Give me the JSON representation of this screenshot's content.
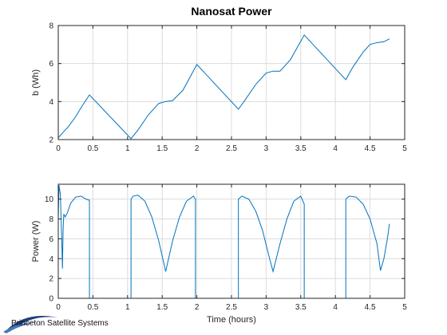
{
  "chart_data": {
    "type": "line",
    "title": "Nanosat Power",
    "color": "#0072BD",
    "charts": [
      {
        "ylabel": "b (Wh)",
        "xlabel": "",
        "xlim": [
          0,
          5
        ],
        "ylim": [
          2,
          8
        ],
        "xticks": [
          0,
          0.5,
          1,
          1.5,
          2,
          2.5,
          3,
          3.5,
          4,
          4.5,
          5
        ],
        "yticks": [
          2,
          4,
          6,
          8
        ],
        "grid": true,
        "x": [
          0,
          0.05,
          0.15,
          0.25,
          0.35,
          0.45,
          1.05,
          1.15,
          1.3,
          1.45,
          1.55,
          1.65,
          1.8,
          2.0,
          2.6,
          2.7,
          2.85,
          3.0,
          3.1,
          3.2,
          3.35,
          3.55,
          4.15,
          4.25,
          4.4,
          4.5,
          4.6,
          4.7,
          4.78
        ],
        "y": [
          2.1,
          2.3,
          2.7,
          3.2,
          3.8,
          4.35,
          2.05,
          2.5,
          3.3,
          3.9,
          4.0,
          4.05,
          4.6,
          5.95,
          3.6,
          4.1,
          4.9,
          5.5,
          5.6,
          5.6,
          6.2,
          7.5,
          5.15,
          5.8,
          6.6,
          7.0,
          7.1,
          7.15,
          7.3
        ]
      },
      {
        "ylabel": "Power (W)",
        "xlabel": "Time (hours)",
        "xlim": [
          0,
          5
        ],
        "ylim": [
          0,
          11.5
        ],
        "xticks": [
          0,
          0.5,
          1,
          1.5,
          2,
          2.5,
          3,
          3.5,
          4,
          4.5,
          5
        ],
        "yticks": [
          0,
          2,
          4,
          6,
          8,
          10
        ],
        "grid": true,
        "x": [
          0,
          0.01,
          0.03,
          0.05,
          0.06,
          0.07,
          0.08,
          0.1,
          0.13,
          0.18,
          0.25,
          0.33,
          0.4,
          0.44,
          0.45,
          0.45,
          1.05,
          1.05,
          1.08,
          1.15,
          1.25,
          1.35,
          1.45,
          1.55,
          1.65,
          1.75,
          1.85,
          1.95,
          1.98,
          1.98,
          2.6,
          2.6,
          2.65,
          2.75,
          2.85,
          2.95,
          3.05,
          3.1,
          3.2,
          3.3,
          3.4,
          3.5,
          3.55,
          3.55,
          4.15,
          4.15,
          4.2,
          4.3,
          4.4,
          4.5,
          4.6,
          4.65,
          4.7,
          4.75,
          4.78
        ],
        "y": [
          8.0,
          11.4,
          10.5,
          6.0,
          3.0,
          7.0,
          8.5,
          8.2,
          8.6,
          9.6,
          10.2,
          10.3,
          10.0,
          9.9,
          9.9,
          0,
          0,
          10.0,
          10.3,
          10.4,
          9.8,
          8.2,
          5.8,
          2.7,
          5.8,
          8.2,
          9.8,
          10.3,
          10.0,
          0,
          0,
          10.0,
          10.3,
          10.0,
          8.8,
          6.8,
          4.0,
          2.7,
          5.5,
          8.0,
          9.8,
          10.3,
          9.5,
          0,
          0,
          10.0,
          10.3,
          10.2,
          9.5,
          8.0,
          5.5,
          2.8,
          4.0,
          6.0,
          7.5
        ]
      }
    ]
  },
  "logo": {
    "text": "Princeton Satellite Systems"
  }
}
